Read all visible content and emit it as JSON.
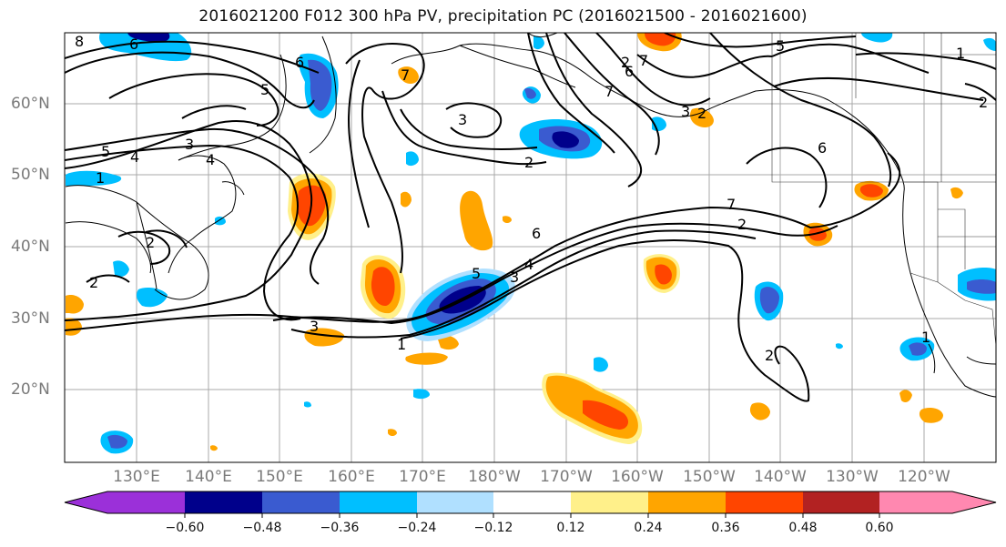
{
  "title": "2016021200 F012 300 hPa PV, precipitation PC (2016021500 - 2016021600)",
  "lat_labels": [
    "60°N",
    "50°N",
    "40°N",
    "30°N",
    "20°N"
  ],
  "lon_labels": [
    "130°E",
    "140°E",
    "150°E",
    "160°E",
    "170°E",
    "180°W",
    "170°W",
    "160°W",
    "150°W",
    "140°W",
    "130°W",
    "120°W"
  ],
  "colorbar": {
    "colors": [
      "#9b30d9",
      "#00008b",
      "#3a5bd0",
      "#00bfff",
      "#b0e0ff",
      "#ffffff",
      "#fff08a",
      "#ffa500",
      "#ff4500",
      "#b22222",
      "#ff88b0"
    ],
    "tick_labels": [
      "−0.60",
      "−0.48",
      "−0.36",
      "−0.24",
      "−0.12",
      "0.12",
      "0.24",
      "0.36",
      "0.48",
      "0.60"
    ]
  },
  "contour_labels": [
    "8",
    "6",
    "5",
    "6",
    "4",
    "3",
    "2",
    "1",
    "5",
    "4",
    "1",
    "2",
    "2",
    "3",
    "3",
    "2",
    "6",
    "7",
    "5",
    "7",
    "6",
    "2",
    "1",
    "5",
    "4",
    "3",
    "1",
    "6",
    "7",
    "7",
    "2",
    "2",
    "2",
    "3"
  ]
}
